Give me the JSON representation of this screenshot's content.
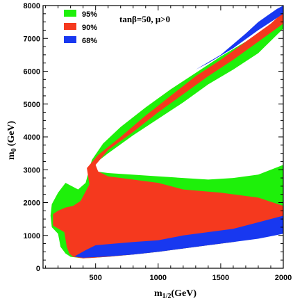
{
  "chart_data": {
    "type": "area",
    "title": "",
    "xlabel": "m",
    "xlabel_sub": "1/2",
    "xlabel_unit": "(GeV)",
    "ylabel": "m",
    "ylabel_sub": "0",
    "ylabel_unit": "(GeV)",
    "xlim": [
      80,
      2000
    ],
    "ylim": [
      0,
      8000
    ],
    "x_ticks": [
      500,
      1000,
      1500,
      2000
    ],
    "x_tick_labels": [
      "500",
      "1000",
      "1500",
      "2000"
    ],
    "y_ticks": [
      0,
      1000,
      2000,
      3000,
      4000,
      5000,
      6000,
      7000,
      8000
    ],
    "y_tick_labels": [
      "0",
      "1000",
      "2000",
      "3000",
      "4000",
      "5000",
      "6000",
      "7000",
      "8000"
    ],
    "annotation": "tanβ=50, μ>0",
    "legend_position": "top-left",
    "series": [
      {
        "name": "95%",
        "color": "#1ef00a",
        "polygon": [
          [
            200,
            1050
          ],
          [
            150,
            1250
          ],
          [
            140,
            1600
          ],
          [
            150,
            1950
          ],
          [
            200,
            2300
          ],
          [
            260,
            2600
          ],
          [
            360,
            2400
          ],
          [
            420,
            2600
          ],
          [
            470,
            3300
          ],
          [
            560,
            3800
          ],
          [
            700,
            4300
          ],
          [
            900,
            4900
          ],
          [
            1100,
            5450
          ],
          [
            1300,
            5950
          ],
          [
            1500,
            6450
          ],
          [
            1700,
            6900
          ],
          [
            1900,
            7400
          ],
          [
            2000,
            7700
          ],
          [
            2000,
            3150
          ],
          [
            1800,
            2850
          ],
          [
            1600,
            2750
          ],
          [
            1400,
            2700
          ],
          [
            1200,
            2750
          ],
          [
            1000,
            2800
          ],
          [
            600,
            2900
          ],
          [
            500,
            2950
          ],
          [
            480,
            3150
          ],
          [
            600,
            3500
          ],
          [
            800,
            4050
          ],
          [
            1000,
            4550
          ],
          [
            1200,
            5050
          ],
          [
            1400,
            5600
          ],
          [
            1600,
            6050
          ],
          [
            1800,
            6550
          ],
          [
            2000,
            7300
          ],
          [
            2000,
            1100
          ],
          [
            1800,
            950
          ],
          [
            1600,
            800
          ],
          [
            1400,
            700
          ],
          [
            1200,
            600
          ],
          [
            1000,
            500
          ],
          [
            800,
            420
          ],
          [
            600,
            350
          ],
          [
            400,
            300
          ],
          [
            300,
            350
          ],
          [
            260,
            450
          ],
          [
            220,
            650
          ]
        ]
      },
      {
        "name": "90%",
        "color": "#f5391e",
        "polygon": [
          [
            250,
            1100
          ],
          [
            160,
            1300
          ],
          [
            160,
            1650
          ],
          [
            200,
            1750
          ],
          [
            260,
            1850
          ],
          [
            320,
            1900
          ],
          [
            380,
            2050
          ],
          [
            450,
            2550
          ],
          [
            430,
            3050
          ],
          [
            520,
            3450
          ],
          [
            700,
            4000
          ],
          [
            900,
            4650
          ],
          [
            1100,
            5250
          ],
          [
            1300,
            5850
          ],
          [
            1500,
            6350
          ],
          [
            1700,
            6900
          ],
          [
            1900,
            7450
          ],
          [
            2000,
            7800
          ],
          [
            2000,
            7450
          ],
          [
            1800,
            6900
          ],
          [
            1600,
            6350
          ],
          [
            1400,
            5850
          ],
          [
            1200,
            5300
          ],
          [
            1000,
            4750
          ],
          [
            800,
            4150
          ],
          [
            600,
            3600
          ],
          [
            500,
            3150
          ],
          [
            520,
            2950
          ],
          [
            600,
            2800
          ],
          [
            1000,
            2600
          ],
          [
            1200,
            2400
          ],
          [
            1500,
            2300
          ],
          [
            1800,
            2150
          ],
          [
            2000,
            1900
          ],
          [
            2000,
            1100
          ],
          [
            1800,
            950
          ],
          [
            1600,
            800
          ],
          [
            1400,
            700
          ],
          [
            1200,
            600
          ],
          [
            1000,
            500
          ],
          [
            800,
            420
          ],
          [
            600,
            350
          ],
          [
            400,
            300
          ],
          [
            320,
            350
          ],
          [
            290,
            450
          ],
          [
            270,
            650
          ]
        ]
      },
      {
        "name": "68%",
        "color": "#1838f0",
        "polygon": [
          [
            420,
            550
          ],
          [
            500,
            700
          ],
          [
            800,
            800
          ],
          [
            1000,
            850
          ],
          [
            1200,
            1000
          ],
          [
            1400,
            1100
          ],
          [
            1600,
            1200
          ],
          [
            1800,
            1400
          ],
          [
            2000,
            1600
          ],
          [
            2000,
            1050
          ],
          [
            1800,
            900
          ],
          [
            1600,
            800
          ],
          [
            1400,
            700
          ],
          [
            1200,
            600
          ],
          [
            1000,
            500
          ],
          [
            800,
            420
          ],
          [
            600,
            360
          ],
          [
            400,
            320
          ],
          [
            330,
            360
          ]
        ],
        "polygon_top": [
          [
            1700,
            7150
          ],
          [
            1800,
            7500
          ],
          [
            1950,
            7900
          ],
          [
            2000,
            8000
          ],
          [
            2000,
            7750
          ],
          [
            1900,
            7500
          ],
          [
            1800,
            7250
          ],
          [
            1600,
            6700
          ],
          [
            1400,
            6250
          ],
          [
            1300,
            6050
          ],
          [
            1500,
            6500
          ]
        ]
      }
    ]
  },
  "legend": [
    {
      "label": "95%",
      "color": "#1ef00a"
    },
    {
      "label": "90%",
      "color": "#f5391e"
    },
    {
      "label": "68%",
      "color": "#1838f0"
    }
  ]
}
